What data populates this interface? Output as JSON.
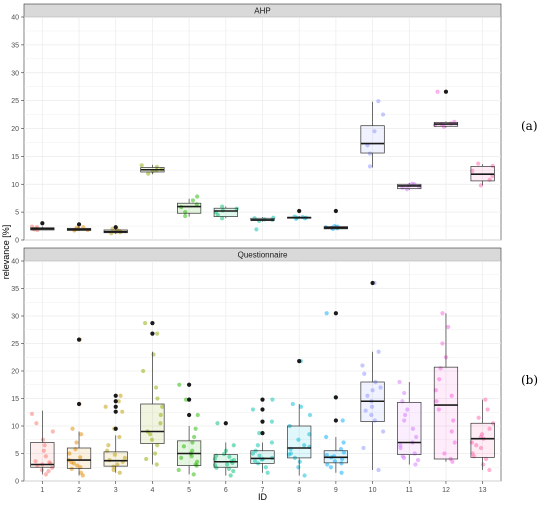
{
  "chart_data": {
    "type": "boxplot",
    "xlabel": "ID",
    "ylabel": "relevance [%]",
    "categories": [
      "1",
      "2",
      "3",
      "4",
      "5",
      "6",
      "7",
      "8",
      "9",
      "10",
      "11",
      "12",
      "13"
    ],
    "ylim": [
      0,
      40
    ],
    "yticks": [
      0,
      5,
      10,
      15,
      20,
      25,
      30,
      35,
      40
    ],
    "ytick_labels": [
      "0",
      "5",
      "10",
      "15",
      "20",
      "25",
      "30",
      "35",
      "40"
    ],
    "grid": true,
    "colors": [
      "#F8766D",
      "#E18A00",
      "#BE9C00",
      "#8CAB00",
      "#24B700",
      "#00BE70",
      "#00C1AB",
      "#00BBDA",
      "#00ACFC",
      "#8B93FF",
      "#D575FE",
      "#F962DD",
      "#FF65AC"
    ],
    "panels": [
      {
        "strip": "AHP",
        "tag": "(a)",
        "boxes": [
          {
            "q1": 1.8,
            "median": 2.0,
            "q3": 2.2,
            "lo": 1.8,
            "hi": 2.4,
            "outliers": [
              3.0
            ]
          },
          {
            "q1": 1.7,
            "median": 1.9,
            "q3": 2.1,
            "lo": 1.6,
            "hi": 2.3,
            "outliers": [
              2.8
            ]
          },
          {
            "q1": 1.3,
            "median": 1.5,
            "q3": 1.8,
            "lo": 1.1,
            "hi": 2.0,
            "outliers": [
              2.3
            ]
          },
          {
            "q1": 12.2,
            "median": 12.6,
            "q3": 13.0,
            "lo": 11.8,
            "hi": 13.5,
            "outliers": []
          },
          {
            "q1": 4.8,
            "median": 6.0,
            "q3": 6.6,
            "lo": 4.2,
            "hi": 7.4,
            "outliers": []
          },
          {
            "q1": 4.2,
            "median": 5.2,
            "q3": 5.7,
            "lo": 3.9,
            "hi": 6.0,
            "outliers": []
          },
          {
            "q1": 3.5,
            "median": 3.6,
            "q3": 3.9,
            "lo": 3.3,
            "hi": 4.1,
            "outliers": []
          },
          {
            "q1": 3.9,
            "median": 4.0,
            "q3": 4.1,
            "lo": 3.8,
            "hi": 4.3,
            "outliers": [
              5.2
            ]
          },
          {
            "q1": 2.0,
            "median": 2.2,
            "q3": 2.4,
            "lo": 1.9,
            "hi": 2.6,
            "outliers": [
              5.2
            ]
          },
          {
            "q1": 15.6,
            "median": 17.3,
            "q3": 20.5,
            "lo": 13.0,
            "hi": 24.8,
            "outliers": []
          },
          {
            "q1": 9.2,
            "median": 9.7,
            "q3": 10.0,
            "lo": 9.0,
            "hi": 10.2,
            "outliers": []
          },
          {
            "q1": 20.4,
            "median": 20.8,
            "q3": 21.1,
            "lo": 20.2,
            "hi": 21.3,
            "outliers": [
              26.6
            ]
          },
          {
            "q1": 10.6,
            "median": 11.8,
            "q3": 13.2,
            "lo": 9.8,
            "hi": 13.6,
            "outliers": []
          }
        ],
        "points": [
          [
            1.8,
            2.0,
            2.1,
            2.3,
            2.4,
            1.9
          ],
          [
            1.7,
            1.8,
            2.0,
            2.2,
            2.3,
            1.9
          ],
          [
            1.2,
            1.4,
            1.6,
            1.9,
            2.0,
            1.5
          ],
          [
            11.9,
            12.3,
            12.7,
            13.1,
            13.4,
            12.5
          ],
          [
            4.3,
            5.0,
            5.9,
            6.4,
            7.1,
            7.8
          ],
          [
            3.9,
            4.5,
            5.3,
            5.6,
            6.0,
            5.0
          ],
          [
            3.4,
            3.6,
            3.7,
            3.9,
            4.0,
            1.9
          ],
          [
            3.8,
            3.9,
            4.0,
            4.2,
            4.1,
            4.0
          ],
          [
            2.0,
            2.1,
            2.3,
            2.5,
            2.2,
            2.4
          ],
          [
            13.2,
            15.5,
            17.0,
            19.5,
            22.5,
            24.9
          ],
          [
            9.1,
            9.4,
            9.8,
            10.0,
            10.1,
            9.6
          ],
          [
            20.3,
            20.6,
            20.9,
            21.2,
            20.8,
            26.6
          ],
          [
            9.8,
            10.8,
            11.5,
            12.4,
            13.3,
            13.7
          ]
        ]
      },
      {
        "strip": "Questionnaire",
        "tag": "(b)",
        "boxes": [
          {
            "q1": 2.5,
            "median": 3.0,
            "q3": 7.0,
            "lo": 1.2,
            "hi": 12.8,
            "outliers": []
          },
          {
            "q1": 2.3,
            "median": 3.8,
            "q3": 6.0,
            "lo": 1.0,
            "hi": 9.0,
            "outliers": [
              14.0,
              25.7
            ]
          },
          {
            "q1": 2.7,
            "median": 3.7,
            "q3": 5.3,
            "lo": 1.5,
            "hi": 8.3,
            "outliers": [
              9.5,
              12.6,
              13.5,
              14.5,
              15.5
            ]
          },
          {
            "q1": 6.8,
            "median": 9.0,
            "q3": 14.0,
            "lo": 3.0,
            "hi": 23.5,
            "outliers": [
              26.8,
              28.7
            ]
          },
          {
            "q1": 2.8,
            "median": 5.0,
            "q3": 7.3,
            "lo": 1.2,
            "hi": 10.0,
            "outliers": [
              12.0,
              14.8,
              17.5
            ]
          },
          {
            "q1": 2.5,
            "median": 3.5,
            "q3": 4.8,
            "lo": 1.0,
            "hi": 7.0,
            "outliers": [
              10.5
            ]
          },
          {
            "q1": 3.2,
            "median": 4.1,
            "q3": 5.5,
            "lo": 1.5,
            "hi": 7.0,
            "outliers": [
              8.7,
              10.8,
              13.0,
              14.8
            ]
          },
          {
            "q1": 4.2,
            "median": 6.0,
            "q3": 10.0,
            "lo": 1.0,
            "hi": 14.0,
            "outliers": [
              21.8
            ]
          },
          {
            "q1": 3.3,
            "median": 4.3,
            "q3": 5.5,
            "lo": 1.5,
            "hi": 8.0,
            "outliers": [
              11.0,
              15.2,
              30.5
            ]
          },
          {
            "q1": 10.8,
            "median": 14.5,
            "q3": 18.0,
            "lo": 2.0,
            "hi": 23.5,
            "outliers": [
              36.0
            ]
          },
          {
            "q1": 4.8,
            "median": 7.0,
            "q3": 14.3,
            "lo": 3.0,
            "hi": 18.0,
            "outliers": []
          },
          {
            "q1": 4.0,
            "median": 13.8,
            "q3": 20.7,
            "lo": 3.5,
            "hi": 30.5,
            "outliers": []
          },
          {
            "q1": 4.3,
            "median": 7.7,
            "q3": 10.5,
            "lo": 2.0,
            "hi": 14.8,
            "outliers": []
          }
        ],
        "points": [
          [
            1.2,
            1.8,
            2.4,
            2.8,
            3.0,
            3.2,
            3.6,
            4.5,
            5.5,
            6.5,
            7.5,
            9.0,
            10.5,
            12.2,
            2.0,
            3.4
          ],
          [
            1.0,
            1.5,
            2.2,
            2.8,
            3.4,
            3.8,
            4.3,
            5.0,
            5.8,
            7.0,
            8.5,
            9.5,
            14.0,
            25.7,
            2.5,
            3.2
          ],
          [
            1.5,
            2.0,
            2.6,
            3.0,
            3.5,
            3.8,
            4.2,
            4.8,
            5.5,
            6.5,
            8.0,
            9.5,
            12.6,
            13.5,
            14.5,
            15.5
          ],
          [
            3.0,
            4.0,
            5.0,
            6.5,
            7.5,
            8.5,
            9.0,
            10.5,
            12.0,
            13.5,
            15.0,
            17.0,
            20.0,
            23.0,
            26.8,
            28.7
          ],
          [
            1.2,
            2.0,
            2.8,
            3.5,
            4.2,
            5.0,
            5.5,
            6.3,
            7.0,
            8.0,
            9.5,
            12.0,
            14.8,
            17.5,
            3.0,
            4.5
          ],
          [
            1.0,
            1.8,
            2.4,
            2.9,
            3.3,
            3.6,
            4.0,
            4.4,
            4.9,
            5.5,
            6.5,
            10.5,
            2.2,
            3.0,
            3.8,
            4.6
          ],
          [
            1.5,
            2.5,
            3.2,
            3.6,
            3.9,
            4.2,
            4.6,
            5.0,
            5.5,
            6.5,
            7.0,
            8.7,
            10.8,
            13.0,
            14.8,
            4.0
          ],
          [
            1.0,
            2.5,
            3.5,
            4.2,
            5.0,
            5.8,
            6.5,
            7.5,
            8.5,
            10.0,
            12.0,
            13.5,
            14.0,
            21.8,
            4.8,
            6.2
          ],
          [
            1.5,
            2.5,
            3.2,
            3.6,
            4.0,
            4.3,
            4.7,
            5.2,
            5.8,
            7.0,
            8.0,
            11.0,
            15.2,
            30.5,
            3.0,
            4.5
          ],
          [
            2.0,
            6.0,
            9.0,
            11.0,
            12.0,
            13.5,
            14.5,
            15.5,
            16.5,
            18.0,
            19.5,
            21.0,
            23.5,
            36.0,
            12.8,
            17.0
          ],
          [
            3.0,
            3.8,
            4.5,
            5.0,
            6.0,
            7.0,
            8.0,
            9.5,
            11.0,
            13.0,
            14.5,
            16.0,
            18.0,
            6.5,
            4.2,
            12.0
          ],
          [
            3.5,
            4.0,
            5.0,
            7.0,
            9.0,
            11.0,
            13.0,
            14.5,
            16.5,
            18.5,
            20.5,
            22.5,
            25.0,
            28.0,
            30.5,
            15.5
          ],
          [
            2.0,
            3.0,
            4.0,
            5.0,
            6.0,
            7.0,
            7.7,
            8.5,
            9.5,
            10.5,
            11.5,
            13.0,
            14.8,
            4.5,
            8.0,
            6.5
          ]
        ]
      }
    ]
  }
}
